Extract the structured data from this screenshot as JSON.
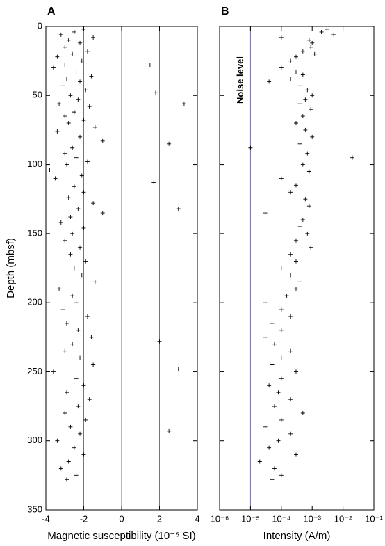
{
  "chart_data": [
    {
      "type": "scatter",
      "panel_label": "A",
      "ylabel": "Depth (mbsf)",
      "xlabel": "Magnetic susceptibility (10⁻⁵ SI)",
      "xlim": [
        -4,
        4
      ],
      "xticks": [
        -4,
        -2,
        0,
        2,
        4
      ],
      "ylim": [
        0,
        350
      ],
      "y_inverted": true,
      "yticks": [
        0,
        50,
        100,
        150,
        200,
        250,
        300,
        350
      ],
      "ytick_labels": true,
      "log_x": false,
      "reference_lines": [
        -2,
        0,
        2
      ],
      "reference_color": "#7a6a9e",
      "color": "#000000",
      "series": [
        {
          "color": "#000000",
          "y": [
            2,
            4,
            6,
            8,
            10,
            12,
            15,
            18,
            20,
            22,
            25,
            28,
            28,
            30,
            33,
            36,
            38,
            40,
            43,
            46,
            48,
            50,
            53,
            56,
            56,
            58,
            62,
            65,
            68,
            70,
            73,
            76,
            80,
            83,
            85,
            88,
            92,
            95,
            98,
            100,
            104,
            108,
            110,
            113,
            116,
            120,
            124,
            128,
            132,
            132,
            135,
            138,
            142,
            146,
            150,
            155,
            160,
            165,
            170,
            175,
            180,
            185,
            190,
            195,
            200,
            205,
            210,
            215,
            220,
            225,
            228,
            230,
            235,
            240,
            245,
            248,
            250,
            255,
            260,
            265,
            270,
            275,
            280,
            285,
            290,
            293,
            295,
            300,
            305,
            310,
            315,
            320,
            325,
            328
          ],
          "x": [
            -2.0,
            -2.5,
            -3.2,
            -1.5,
            -2.8,
            -2.2,
            -3.0,
            -1.8,
            -2.6,
            -3.4,
            -2.1,
            1.5,
            -3.0,
            -3.6,
            -2.4,
            -1.6,
            -2.9,
            -2.2,
            -3.1,
            -1.9,
            1.8,
            -2.7,
            -2.3,
            -3.3,
            3.3,
            -1.7,
            -2.5,
            -3.0,
            -2.0,
            -2.8,
            -1.4,
            -3.4,
            -2.2,
            -1.0,
            2.5,
            -2.6,
            -3.0,
            -2.4,
            -1.8,
            -2.9,
            -3.8,
            -2.1,
            -3.5,
            1.7,
            -2.5,
            -2.0,
            -2.8,
            -1.5,
            3.0,
            -2.3,
            -1.0,
            -2.7,
            -3.2,
            -2.0,
            -2.6,
            -3.0,
            -2.2,
            -2.7,
            -1.9,
            -2.5,
            -2.1,
            -1.4,
            -3.3,
            -2.6,
            -2.4,
            -3.1,
            -1.8,
            -2.9,
            -2.3,
            -1.6,
            2.0,
            -2.6,
            -3.0,
            -2.2,
            -1.5,
            3.0,
            -3.6,
            -2.4,
            -2.0,
            -2.9,
            -1.7,
            -2.3,
            -3.0,
            -1.9,
            -2.7,
            2.5,
            -2.2,
            -3.4,
            -2.5,
            -2.0,
            -2.8,
            -3.2,
            -2.4,
            -2.9
          ]
        }
      ]
    },
    {
      "type": "scatter",
      "panel_label": "B",
      "xlabel": "Intensity (A/m)",
      "xlim": [
        1e-06,
        0.1
      ],
      "log_x": true,
      "xticks": [
        {
          "value": 1e-06,
          "label": "10⁻⁶"
        },
        {
          "value": 1e-05,
          "label": "10⁻⁵"
        },
        {
          "value": 0.0001,
          "label": "10⁻⁴"
        },
        {
          "value": 0.001,
          "label": "10⁻³"
        },
        {
          "value": 0.01,
          "label": "10⁻²"
        },
        {
          "value": 0.1,
          "label": "10⁻¹"
        }
      ],
      "ylim": [
        0,
        350
      ],
      "y_inverted": true,
      "yticks": [
        0,
        50,
        100,
        150,
        200,
        250,
        300,
        350
      ],
      "ytick_labels": false,
      "reference_lines": [
        1e-05
      ],
      "reference_color": "#7a6a9e",
      "annotation": "Noise level",
      "color": "#000000",
      "series": [
        {
          "color": "#000000",
          "y": [
            2,
            4,
            6,
            8,
            10,
            12,
            15,
            18,
            20,
            22,
            25,
            30,
            33,
            35,
            38,
            40,
            43,
            46,
            50,
            53,
            56,
            60,
            65,
            70,
            75,
            80,
            85,
            88,
            92,
            95,
            100,
            105,
            110,
            115,
            120,
            125,
            130,
            135,
            140,
            145,
            150,
            155,
            160,
            165,
            170,
            175,
            180,
            185,
            190,
            195,
            200,
            205,
            210,
            215,
            220,
            225,
            230,
            235,
            240,
            245,
            250,
            255,
            260,
            265,
            270,
            275,
            280,
            285,
            290,
            295,
            300,
            305,
            310,
            315,
            320,
            325,
            328
          ],
          "x": [
            0.003,
            0.002,
            0.005,
            0.0001,
            0.0008,
            0.001,
            0.0009,
            0.0005,
            0.0012,
            0.0003,
            0.0002,
            0.0001,
            0.0003,
            0.0005,
            0.0002,
            4e-05,
            0.0004,
            0.0007,
            0.001,
            0.0006,
            0.0004,
            0.0009,
            0.0005,
            0.0003,
            0.0006,
            0.001,
            0.0004,
            1e-05,
            0.0007,
            0.02,
            0.0005,
            0.0008,
            0.0001,
            0.0003,
            0.0002,
            0.0006,
            0.0008,
            3e-05,
            0.0005,
            0.0004,
            0.0007,
            0.0003,
            0.0009,
            0.0002,
            0.0003,
            0.0001,
            0.0002,
            0.0004,
            0.0003,
            0.00015,
            3e-05,
            0.0001,
            0.0002,
            5e-05,
            0.0001,
            3e-05,
            6e-05,
            0.0002,
            0.0001,
            5e-05,
            0.0003,
            0.0001,
            4e-05,
            8e-05,
            0.0002,
            6e-05,
            0.0005,
            0.0001,
            3e-05,
            0.0002,
            8e-05,
            4e-05,
            0.0003,
            2e-05,
            6e-05,
            0.0001,
            5e-05
          ]
        }
      ]
    }
  ]
}
